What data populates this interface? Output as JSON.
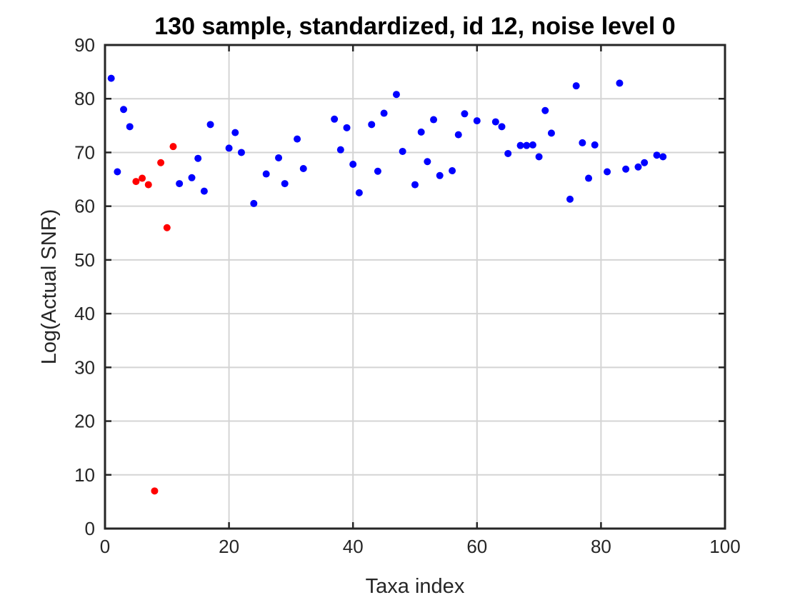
{
  "chart_data": {
    "type": "scatter",
    "title": "130 sample, standardized, id 12, noise level 0",
    "xlabel": "Taxa index",
    "ylabel": "Log(Actual SNR)",
    "xlim": [
      0,
      100
    ],
    "ylim": [
      0,
      90
    ],
    "xticks": [
      0,
      20,
      40,
      60,
      80,
      100
    ],
    "yticks": [
      0,
      10,
      20,
      30,
      40,
      50,
      60,
      70,
      80,
      90
    ],
    "xtick_labels": [
      "0",
      "20",
      "40",
      "60",
      "80",
      "100"
    ],
    "ytick_labels": [
      "0",
      "10",
      "20",
      "30",
      "40",
      "50",
      "60",
      "70",
      "80",
      "90"
    ],
    "grid": true,
    "series": [
      {
        "color": "#0000ff",
        "x": [
          1,
          2,
          3,
          4,
          12,
          14,
          15,
          16,
          17,
          20,
          21,
          22,
          24,
          26,
          28,
          29,
          31,
          32,
          37,
          38,
          39,
          40,
          41,
          43,
          44,
          45,
          47,
          48,
          50,
          51,
          52,
          53,
          54,
          56,
          57,
          58,
          60,
          63,
          64,
          65,
          67,
          68,
          69,
          70,
          71,
          72,
          75,
          76,
          77,
          78,
          79,
          81,
          83,
          84,
          86,
          87,
          89,
          90
        ],
        "y": [
          83.8,
          66.4,
          78.0,
          74.8,
          64.2,
          65.3,
          68.9,
          62.8,
          75.2,
          70.8,
          73.7,
          70.0,
          60.5,
          66.0,
          69.0,
          64.2,
          72.5,
          67.0,
          76.2,
          70.5,
          74.6,
          67.8,
          62.5,
          75.2,
          66.5,
          77.3,
          80.8,
          70.2,
          64.0,
          73.8,
          68.3,
          76.1,
          65.7,
          66.6,
          73.3,
          77.2,
          75.9,
          75.7,
          74.8,
          69.8,
          71.3,
          71.3,
          71.4,
          69.2,
          77.8,
          73.6,
          61.3,
          82.4,
          71.8,
          65.2,
          71.4,
          66.4,
          82.9,
          66.9,
          67.3,
          68.1,
          69.5,
          69.2
        ]
      },
      {
        "color": "#ff0000",
        "x": [
          5,
          6,
          7,
          8,
          9,
          10,
          11
        ],
        "y": [
          64.6,
          65.2,
          64.0,
          7.0,
          68.1,
          56.0,
          71.1
        ]
      }
    ]
  }
}
